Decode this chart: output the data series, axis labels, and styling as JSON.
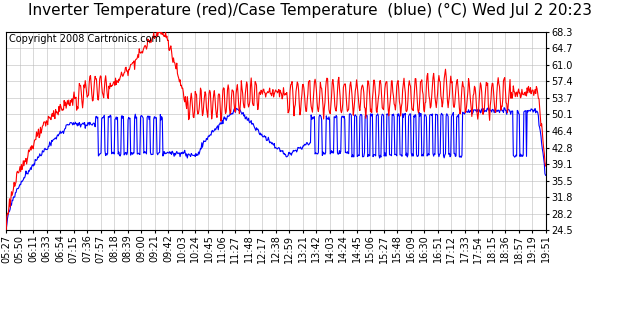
{
  "title": "Inverter Temperature (red)/Case Temperature  (blue) (°C) Wed Jul 2 20:23",
  "copyright": "Copyright 2008 Cartronics.com",
  "background_color": "#ffffff",
  "plot_bg_color": "#ffffff",
  "grid_color": "#bbbbbb",
  "red_color": "#ff0000",
  "blue_color": "#0000ff",
  "ylim": [
    24.5,
    68.3
  ],
  "yticks": [
    24.5,
    28.2,
    31.8,
    35.5,
    39.1,
    42.8,
    46.4,
    50.1,
    53.7,
    57.4,
    61.0,
    64.7,
    68.3
  ],
  "xtick_labels": [
    "05:27",
    "05:50",
    "06:11",
    "06:33",
    "06:54",
    "07:15",
    "07:36",
    "07:57",
    "08:18",
    "08:39",
    "09:00",
    "09:21",
    "09:42",
    "10:03",
    "10:24",
    "10:45",
    "11:06",
    "11:27",
    "11:48",
    "12:17",
    "12:38",
    "12:59",
    "13:21",
    "13:42",
    "14:03",
    "14:24",
    "14:45",
    "15:06",
    "15:27",
    "15:48",
    "16:09",
    "16:30",
    "16:51",
    "17:12",
    "17:33",
    "17:54",
    "18:15",
    "18:36",
    "18:57",
    "19:19",
    "19:51"
  ],
  "title_fontsize": 11,
  "copyright_fontsize": 7,
  "tick_fontsize": 7,
  "linewidth": 0.8
}
